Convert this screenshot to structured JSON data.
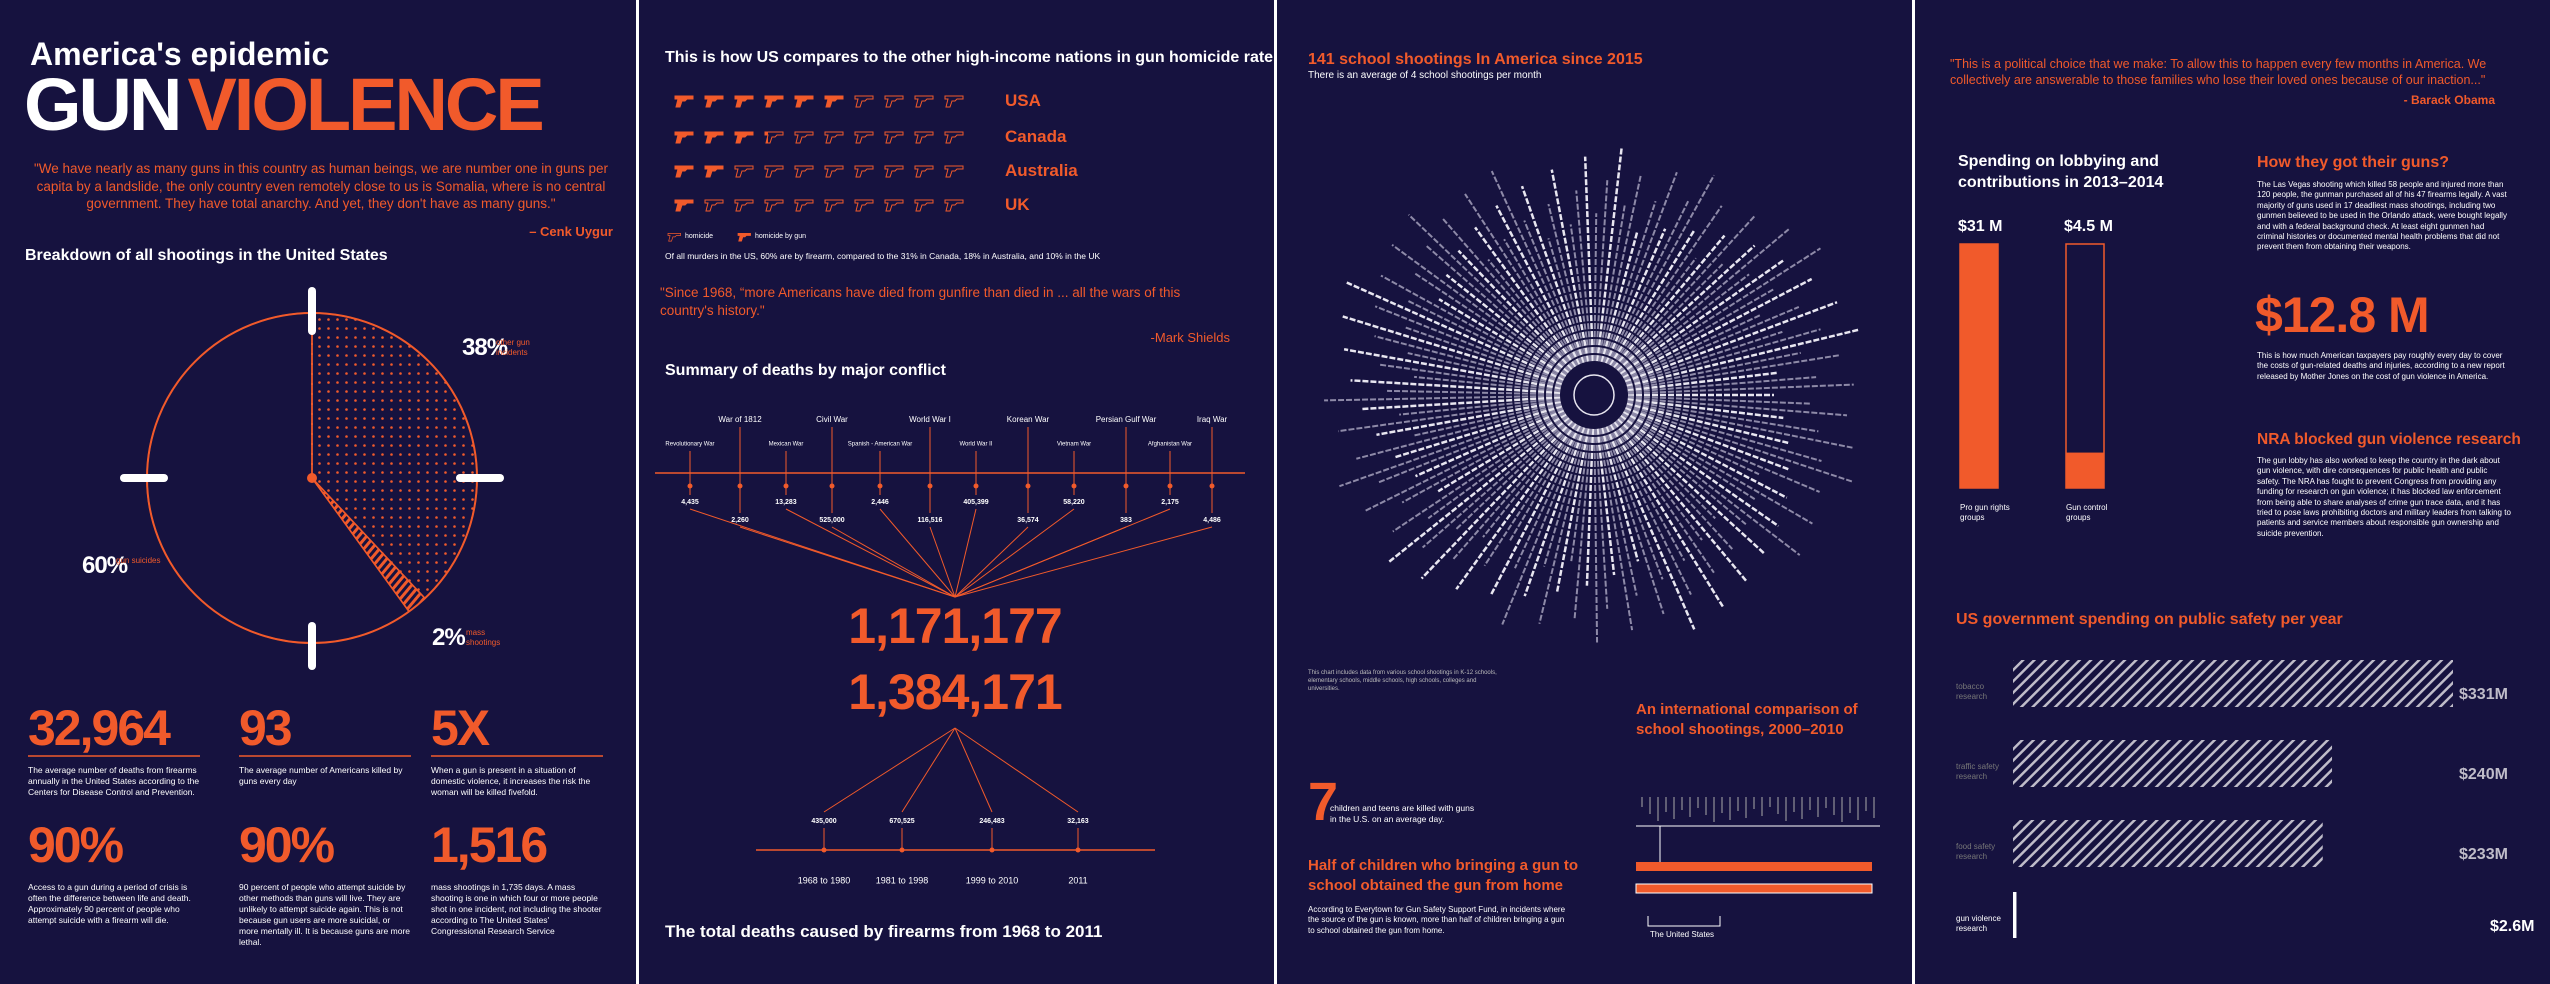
{
  "panel_1": {
    "kicker": "America's epidemic",
    "title_1": "GUN",
    "title_2": "VIOLENCE",
    "quote": "\"We have nearly as many guns in this country as human beings, we are number one in guns per capita by a landslide, the only country even  remotely close to us is Somalia, where is no central government. They have total anarchy. And yet, they don't have as many guns.\"",
    "quote_author": "– Cenk Uygur",
    "stats": [
      {
        "figure": "32,964",
        "text": "The average number of deaths from firearms annually in the United States according to the Centers for Disease Control and Prevention."
      },
      {
        "figure": "93",
        "text": "The average number of Americans killed by guns every day"
      },
      {
        "figure": "5X",
        "text": "When a gun is present in a situation of domestic violence, it increases the risk the woman will be killed fivefold."
      },
      {
        "figure": "90%",
        "text": "Access to a gun during a period of crisis is often the difference between life and death. Approximately 90 percent of people who attempt suicide with a firearm will die."
      },
      {
        "figure": "90%",
        "text": "90 percent of people who attempt suicide by other methods than guns will live. They are unlikely to attempt suicide again. This is not because gun users are more suicidal, or more mentally ill. It is because guns are more lethal."
      },
      {
        "figure": "1,516",
        "text": "mass shootings in 1,735 days. A mass shooting is one in which four or more people shot in one incident, not including the shooter according to The United States' Congressional Research Service"
      }
    ]
  },
  "panel_2": {
    "quote": "\"Since 1968, “more Americans have died from gunfire than died in ... all the wars of this country's history.\"",
    "quote_author": "-Mark Shields"
  },
  "panel_3": {
    "title": "141 school shootings In America since 2015",
    "subtitle": "There is an average of 4 school shootings per month",
    "note": "This chart includes data from various school shootings in K-12 schools, elementary schools, middle schools, high schools, colleges and universities.",
    "comparison_title": "An international comparison of school shootings, 2000–2010",
    "comparison_label": "The United States",
    "figure": "7",
    "figure_text": "children and teens are killed with guns in the U.S. on an average day.",
    "home_title": "Half of children who bringing a gun to school obtained the gun from home",
    "home_text": "According to Everytown for Gun Safety Support Fund, in incidents where the source of the gun is known, more than half of children bringing a gun to school obtained the gun from home."
  },
  "panel_4": {
    "quote": "\"This is a political choice that we make: To allow this to happen every few months in America. We collectively are answerable to those families who lose their loved ones because of our inaction...\"",
    "quote_author": "- Barack Obama",
    "guns_title": "How they got their guns?",
    "guns_text": "The Las Vegas shooting which killed 58 people and injured more than 120 people, the gunman purchased all of his 47 firearms legally. A vast majority of guns used in 17 deadliest mass shootings, including two gunmen believed to be used in the Orlando attack, were bought legally and with a federal background check. At least eight gunmen had criminal histories or documented mental health problems that did not prevent them from obtaining their weapons.",
    "cost_figure": "$12.8 M",
    "cost_text": "This is how much American taxpayers pay roughly every day to cover the costs of gun-related deaths and injuries, according to a new report released by Mother Jones on the cost of gun violence in America.",
    "nra_title": "NRA blocked gun violence research",
    "nra_text": "The gun lobby has also worked to keep the country in the dark about gun violence, with dire consequences for public health and public safety. The NRA has fought to prevent Congress from providing any funding for research on gun violence; it has blocked law enforcement from being able to share analyses of crime gun trace data, and it has tried to pose laws prohibiting doctors and military leaders from talking to patients and service members about responsible gun ownership and suicide prevention."
  },
  "chart_data": [
    {
      "type": "pie",
      "title": "Breakdown of all shootings in the United States",
      "categories": [
        "other gun incidents",
        "mass shootings",
        "gun suicides"
      ],
      "values": [
        38,
        2,
        60
      ],
      "value_labels": [
        "38%",
        "2%",
        "60%"
      ],
      "color": "#f15a2b"
    },
    {
      "type": "pictogram",
      "title": "This is how US compares to the other high-income nations in gun homicide rate",
      "categories": [
        "USA",
        "Canada",
        "Australia",
        "UK"
      ],
      "values": [
        60,
        31,
        18,
        10
      ],
      "xlim": [
        0,
        100
      ],
      "legend": [
        "homicide",
        "homicide by gun"
      ],
      "note": "Of all murders in the US, 60% are by firearm, compared to the 31% in Canada, 18% in Australia, and 10% in the UK",
      "color": "#f15a2b"
    },
    {
      "type": "timeline",
      "title": "Summary of deaths by major conflict",
      "categories": [
        "Revolutionary War",
        "War of 1812",
        "Mexican War",
        "Civil War",
        "Spanish - American War",
        "World War I",
        "World War II",
        "Korean War",
        "Vietnam War",
        "Persian Gulf War",
        "Afghanistan War",
        "Iraq War"
      ],
      "values": [
        4435,
        2260,
        13283,
        525000,
        2446,
        116516,
        405399,
        36574,
        58220,
        383,
        2175,
        4486
      ],
      "value_labels": [
        "4,435",
        "2,260",
        "13,283",
        "525,000",
        "2,446",
        "116,516",
        "405,399",
        "36,574",
        "58,220",
        "383",
        "2,175",
        "4,486"
      ],
      "total": {
        "value": 1171177,
        "label": "1,171,177"
      },
      "color": "#f15a2b"
    },
    {
      "type": "timeline",
      "title": "The total deaths caused by firearms from 1968 to 2011",
      "categories": [
        "1968 to 1980",
        "1981 to 1998",
        "1999 to 2010",
        "2011"
      ],
      "values": [
        435000,
        670525,
        246483,
        32163
      ],
      "value_labels": [
        "435,000",
        "670,525",
        "246,483",
        "32,163"
      ],
      "total": {
        "value": 1384171,
        "label": "1,384,171"
      },
      "color": "#f15a2b"
    },
    {
      "type": "bar",
      "title": "Spending on lobbying and contributions in 2013–2014",
      "categories": [
        "Pro gun rights groups",
        "Gun control groups"
      ],
      "values": [
        31,
        4.5
      ],
      "value_labels": [
        "$31 M",
        "$4.5 M"
      ],
      "ylim": [
        0,
        31
      ],
      "color": "#f15a2b"
    },
    {
      "type": "barh",
      "title": "US government spending on public safety per year",
      "categories": [
        "tobacco research",
        "traffic safety research",
        "food safety research",
        "gun violence research"
      ],
      "values": [
        331,
        240,
        233,
        2.6
      ],
      "value_labels": [
        "$331M",
        "$240M",
        "$233M",
        "$2.6M"
      ],
      "xlim": [
        0,
        331
      ],
      "color": "#bfbcc9"
    }
  ]
}
